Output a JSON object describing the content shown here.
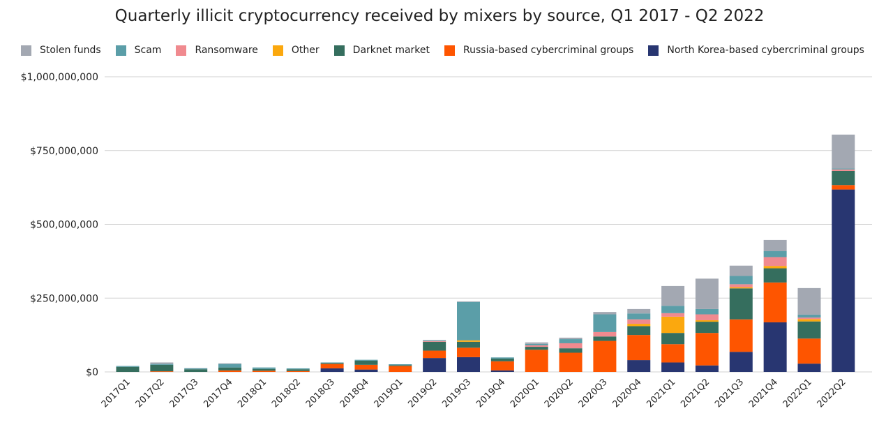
{
  "colors": {
    "stolen_funds": "#a3a8b2",
    "scam": "#5b9ea8",
    "ransomware": "#f08a8f",
    "other": "#fba80e",
    "darknet_market": "#356e5e",
    "russia": "#fe5500",
    "north_korea": "#283671",
    "gridline": "#d0d0d0"
  },
  "chart_data": {
    "type": "bar",
    "stacked": true,
    "title": "Quarterly illicit cryptocurrency received by mixers by source, Q1 2017 - Q2 2022",
    "xlabel": "",
    "ylabel": "",
    "ylim": [
      0,
      1000000000
    ],
    "yticks": [
      0,
      250000000,
      500000000,
      750000000,
      1000000000
    ],
    "ytick_labels": [
      "$0",
      "$250,000,000",
      "$500,000,000",
      "$750,000,000",
      "$1,000,000,000"
    ],
    "grid": true,
    "legend_position": "top",
    "categories": [
      "2017Q1",
      "2017Q2",
      "2017Q3",
      "2017Q4",
      "2018Q1",
      "2018Q2",
      "2018Q3",
      "2018Q4",
      "2019Q1",
      "2019Q2",
      "2019Q3",
      "2019Q4",
      "2020Q1",
      "2020Q2",
      "2020Q3",
      "2020Q4",
      "2021Q1",
      "2021Q2",
      "2021Q3",
      "2021Q4",
      "2022Q1",
      "2022Q2"
    ],
    "series": [
      {
        "name": "North Korea-based cybercriminal groups",
        "color_key": "north_korea",
        "values": [
          0,
          0,
          0,
          0,
          0,
          0,
          12000000,
          8000000,
          0,
          47000000,
          50000000,
          5000000,
          0,
          0,
          0,
          40000000,
          32000000,
          22000000,
          68000000,
          168000000,
          28000000,
          618000000
        ]
      },
      {
        "name": "Russia-based cybercriminal groups",
        "color_key": "russia",
        "values": [
          0,
          2000000,
          0,
          5000000,
          4000000,
          3000000,
          15000000,
          16000000,
          20000000,
          25000000,
          32000000,
          31000000,
          75000000,
          65000000,
          105000000,
          85000000,
          62000000,
          110000000,
          110000000,
          135000000,
          85000000,
          15000000
        ]
      },
      {
        "name": "Darknet market",
        "color_key": "darknet_market",
        "values": [
          17000000,
          22000000,
          9000000,
          10000000,
          6000000,
          6000000,
          3000000,
          14000000,
          3000000,
          30000000,
          20000000,
          9000000,
          10000000,
          15000000,
          15000000,
          30000000,
          38000000,
          38000000,
          105000000,
          48000000,
          58000000,
          48000000
        ]
      },
      {
        "name": "Other",
        "color_key": "other",
        "values": [
          0,
          0,
          0,
          0,
          0,
          0,
          0,
          0,
          0,
          0,
          5000000,
          0,
          0,
          0,
          0,
          8000000,
          55000000,
          5000000,
          4000000,
          8000000,
          8000000,
          0
        ]
      },
      {
        "name": "Ransomware",
        "color_key": "ransomware",
        "values": [
          0,
          0,
          0,
          0,
          0,
          0,
          0,
          0,
          0,
          2000000,
          0,
          0,
          5000000,
          17000000,
          15000000,
          15000000,
          12000000,
          20000000,
          10000000,
          30000000,
          5000000,
          5000000
        ]
      },
      {
        "name": "Scam",
        "color_key": "scam",
        "values": [
          3000000,
          3000000,
          3000000,
          12000000,
          5000000,
          3000000,
          2000000,
          3000000,
          3000000,
          2000000,
          130000000,
          4000000,
          5000000,
          14000000,
          60000000,
          20000000,
          25000000,
          18000000,
          28000000,
          20000000,
          10000000,
          3000000
        ]
      },
      {
        "name": "Stolen funds",
        "color_key": "stolen_funds",
        "values": [
          0,
          5000000,
          1000000,
          2000000,
          0,
          0,
          0,
          0,
          0,
          2000000,
          2000000,
          0,
          5000000,
          5000000,
          8000000,
          15000000,
          67000000,
          103000000,
          35000000,
          38000000,
          90000000,
          115000000
        ]
      }
    ]
  }
}
